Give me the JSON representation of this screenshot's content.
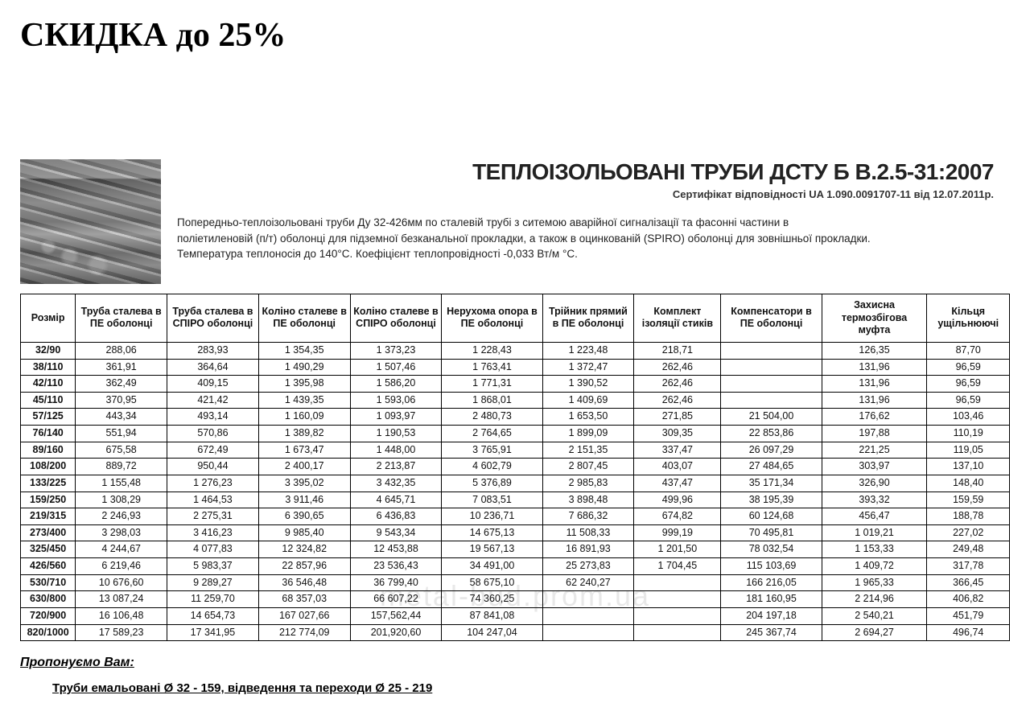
{
  "promo": "СКИДКА до 25%",
  "title": "ТЕПЛОІЗОЛЬОВАНІ ТРУБИ ДСТУ Б В.2.5-31:2007",
  "certificate": "Сертифікат відповідності UA 1.090.0091707-11 від 12.07.2011р.",
  "description_1": "Попередньо-теплоізольовані труби Ду 32-426мм по сталевій трубі з ситемою аварійної сигналізації та фасонні частини в",
  "description_2": "поліетиленовій (п/т) оболонці для підземної безканальної прокладки, а також в оцинкованій (SPIRO) оболонці для зовнішньої прокладки.",
  "description_3": "Температура теплоносія до 140°С. Коефіцієнт теплопровідності -0,033 Вт/м °С.",
  "watermark": "metal-bud.prom.ua",
  "footer_offer": "Пропонуємо Вам:",
  "footer_products": "Труби емальовані Ø 32 - 159, відведення та переходи Ø 25 - 219",
  "table": {
    "columns": [
      "Розмір",
      "Труба сталева в ПЕ оболонці",
      "Труба сталева в СПІРО оболонці",
      "Коліно сталеве в ПЕ оболонці",
      "Коліно сталеве в СПІРО оболонці",
      "Нерухома опора в ПЕ оболонці",
      "Трійник прямий в ПЕ оболонці",
      "Комплект ізоляції стиків",
      "Компенсатори в ПЕ оболонці",
      "Захисна термозбігова муфта",
      "Кільця ущільнюючі"
    ],
    "col_widths": [
      "60px",
      "100px",
      "100px",
      "100px",
      "100px",
      "110px",
      "100px",
      "95px",
      "110px",
      "115px",
      "90px"
    ],
    "rows": [
      [
        "32/90",
        "288,06",
        "283,93",
        "1 354,35",
        "1 373,23",
        "1 228,43",
        "1 223,48",
        "218,71",
        "",
        "126,35",
        "87,70"
      ],
      [
        "38/110",
        "361,91",
        "364,64",
        "1 490,29",
        "1 507,46",
        "1 763,41",
        "1 372,47",
        "262,46",
        "",
        "131,96",
        "96,59"
      ],
      [
        "42/110",
        "362,49",
        "409,15",
        "1 395,98",
        "1 586,20",
        "1 771,31",
        "1 390,52",
        "262,46",
        "",
        "131,96",
        "96,59"
      ],
      [
        "45/110",
        "370,95",
        "421,42",
        "1 439,35",
        "1 593,06",
        "1 868,01",
        "1 409,69",
        "262,46",
        "",
        "131,96",
        "96,59"
      ],
      [
        "57/125",
        "443,34",
        "493,14",
        "1 160,09",
        "1 093,97",
        "2 480,73",
        "1 653,50",
        "271,85",
        "21 504,00",
        "176,62",
        "103,46"
      ],
      [
        "76/140",
        "551,94",
        "570,86",
        "1 389,82",
        "1 190,53",
        "2 764,65",
        "1 899,09",
        "309,35",
        "22 853,86",
        "197,88",
        "110,19"
      ],
      [
        "89/160",
        "675,58",
        "672,49",
        "1 673,47",
        "1 448,00",
        "3 765,91",
        "2 151,35",
        "337,47",
        "26 097,29",
        "221,25",
        "119,05"
      ],
      [
        "108/200",
        "889,72",
        "950,44",
        "2 400,17",
        "2 213,87",
        "4 602,79",
        "2 807,45",
        "403,07",
        "27 484,65",
        "303,97",
        "137,10"
      ],
      [
        "133/225",
        "1 155,48",
        "1 276,23",
        "3 395,02",
        "3 432,35",
        "5 376,89",
        "2 985,83",
        "437,47",
        "35 171,34",
        "326,90",
        "148,40"
      ],
      [
        "159/250",
        "1 308,29",
        "1 464,53",
        "3 911,46",
        "4 645,71",
        "7 083,51",
        "3 898,48",
        "499,96",
        "38 195,39",
        "393,32",
        "159,59"
      ],
      [
        "219/315",
        "2 246,93",
        "2 275,31",
        "6 390,65",
        "6 436,83",
        "10 236,71",
        "7 686,32",
        "674,82",
        "60 124,68",
        "456,47",
        "188,78"
      ],
      [
        "273/400",
        "3 298,03",
        "3 416,23",
        "9 985,40",
        "9 543,34",
        "14 675,13",
        "11 508,33",
        "999,19",
        "70 495,81",
        "1 019,21",
        "227,02"
      ],
      [
        "325/450",
        "4 244,67",
        "4 077,83",
        "12 324,82",
        "12 453,88",
        "19 567,13",
        "16 891,93",
        "1 201,50",
        "78 032,54",
        "1 153,33",
        "249,48"
      ],
      [
        "426/560",
        "6 219,46",
        "5 983,37",
        "22 857,96",
        "23 536,43",
        "34 491,00",
        "25 273,83",
        "1 704,45",
        "115 103,69",
        "1 409,72",
        "317,78"
      ],
      [
        "530/710",
        "10 676,60",
        "9 289,27",
        "36 546,48",
        "36 799,40",
        "58 675,10",
        "62 240,27",
        "",
        "166 216,05",
        "1 965,33",
        "366,45"
      ],
      [
        "630/800",
        "13 087,24",
        "11 259,70",
        "68 357,03",
        "66 607,22",
        "74 360,25",
        "",
        "",
        "181 160,95",
        "2 214,96",
        "406,82"
      ],
      [
        "720/900",
        "16 106,48",
        "14 654,73",
        "167 027,66",
        "157,562,44",
        "87 841,08",
        "",
        "",
        "204 197,18",
        "2 540,21",
        "451,79"
      ],
      [
        "820/1000",
        "17 589,23",
        "17 341,95",
        "212 774,09",
        "201,920,60",
        "104 247,04",
        "",
        "",
        "245 367,74",
        "2 694,27",
        "496,74"
      ]
    ]
  },
  "style": {
    "promo_fontsize": 42,
    "title_fontsize": 28,
    "body_fontsize": 13.5,
    "table_fontsize": 12.5,
    "text_color": "#111111",
    "border_color": "#000000",
    "background": "#ffffff"
  }
}
